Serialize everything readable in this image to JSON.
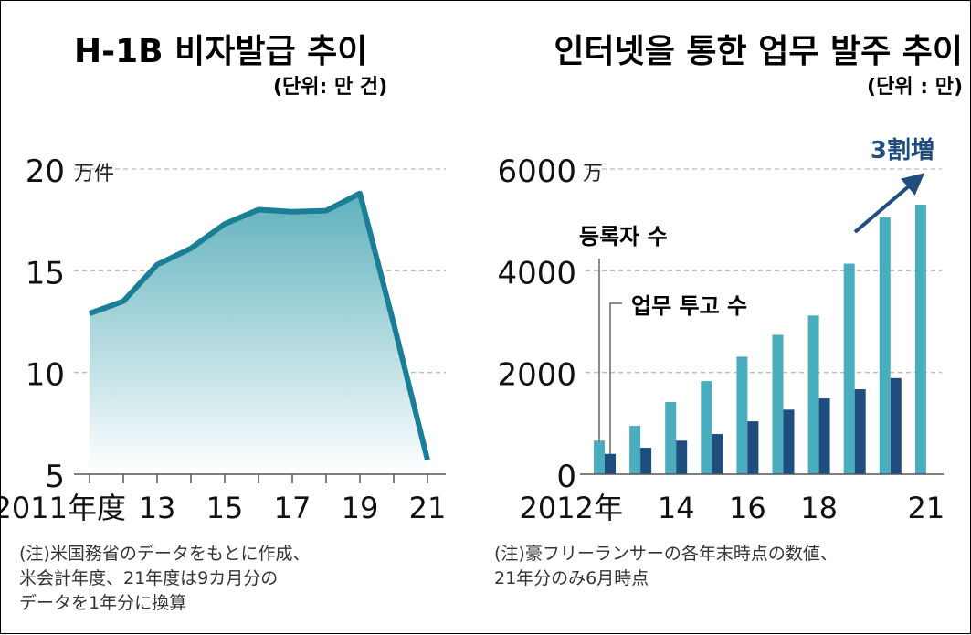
{
  "chart_data": [
    {
      "type": "area",
      "title": "H-1B 비자발급 추이",
      "unit_label": "(단위: 만 건)",
      "y_unit": "万件",
      "x": [
        2011,
        2012,
        2013,
        2014,
        2015,
        2016,
        2017,
        2018,
        2019,
        2020,
        2021
      ],
      "x_tick_labels": [
        "2011年度",
        "13",
        "15",
        "17",
        "19",
        "21"
      ],
      "x_tick_values": [
        2011,
        2013,
        2015,
        2017,
        2019,
        2021
      ],
      "values": [
        12.9,
        13.5,
        15.3,
        16.1,
        17.3,
        18.0,
        17.9,
        17.95,
        18.8,
        12.4,
        5.7
      ],
      "ylim": [
        5,
        20
      ],
      "y_ticks": [
        "5",
        "10",
        "15",
        "20"
      ],
      "grid": true,
      "color": "#1a7f96",
      "note": "(注)米国務省のデータをもとに作成、\n米会計年度、21年度は9カ月分の\nデータを1年分に換算"
    },
    {
      "type": "bar",
      "title": "인터넷을 통한 업무 발주 추이",
      "unit_label": "(단위 : 만)",
      "y_unit": "万",
      "categories": [
        2012,
        2013,
        2014,
        2015,
        2016,
        2017,
        2018,
        2019,
        2020,
        2021
      ],
      "x_tick_labels": [
        "2012年",
        "14",
        "16",
        "18",
        "21"
      ],
      "x_tick_values": [
        2012,
        2014,
        2016,
        2018,
        2021
      ],
      "series": [
        {
          "name": "등록자 수",
          "color": "#4aadbd",
          "values": [
            660,
            950,
            1420,
            1830,
            2310,
            2740,
            3120,
            4140,
            5050,
            5300
          ]
        },
        {
          "name": "업무 투고 수",
          "color": "#1f4e7e",
          "values": [
            400,
            520,
            660,
            790,
            1040,
            1270,
            1490,
            1670,
            1890,
            null
          ]
        }
      ],
      "ylim": [
        0,
        6000
      ],
      "y_ticks": [
        "0",
        "2000",
        "4000",
        "6000"
      ],
      "grid": true,
      "annotation": "3割増",
      "annotation_color": "#1f4e7e",
      "note": "(注)豪フリーランサーの各年末時点の数値、\n21年分のみ6月時点"
    }
  ]
}
